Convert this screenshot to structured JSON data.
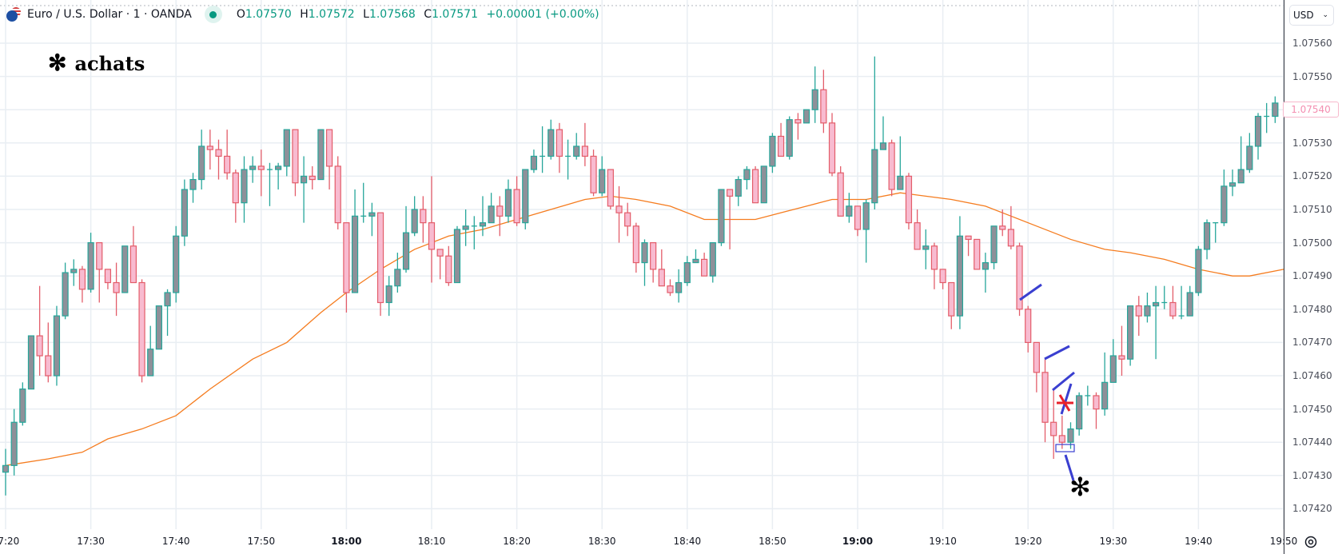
{
  "header": {
    "symbol": "Euro / U.S. Dollar · 1 · OANDA",
    "o_label": "O",
    "o": "1.07570",
    "h_label": "H",
    "h": "1.07572",
    "l_label": "L",
    "l": "1.07568",
    "c_label": "C",
    "c": "1.07571",
    "change": "+0.00001 (+0.00%)",
    "status_color": "#089981"
  },
  "annotations": {
    "top_text": "achats",
    "star": "✻"
  },
  "axis": {
    "currency": "USD",
    "last_price": "1.07540"
  },
  "colors": {
    "up_body": "#8e9099",
    "up_border": "#26a69a",
    "down_body": "#f8bbd0",
    "down_border": "#e35d6a",
    "ma": "#f57c1f",
    "drawing": "#3a3fd0",
    "marker": "#e8202a"
  },
  "chart_data": {
    "type": "candlestick",
    "interval": "1",
    "ylim": [
      1.07415,
      1.07565
    ],
    "grid": true,
    "y_ticks": [
      "1.07560",
      "1.07550",
      "1.07540",
      "1.07530",
      "1.07520",
      "1.07510",
      "1.07500",
      "1.07490",
      "1.07480",
      "1.07470",
      "1.07460",
      "1.07450",
      "1.07440",
      "1.07430",
      "1.07420"
    ],
    "x_ticks": [
      {
        "t": "17:20",
        "bold": false
      },
      {
        "t": "17:30",
        "bold": false
      },
      {
        "t": "17:40",
        "bold": false
      },
      {
        "t": "17:50",
        "bold": false
      },
      {
        "t": "18:00",
        "bold": true
      },
      {
        "t": "18:10",
        "bold": false
      },
      {
        "t": "18:20",
        "bold": false
      },
      {
        "t": "18:30",
        "bold": false
      },
      {
        "t": "18:40",
        "bold": false
      },
      {
        "t": "18:50",
        "bold": false
      },
      {
        "t": "19:00",
        "bold": true
      },
      {
        "t": "19:10",
        "bold": false
      },
      {
        "t": "19:20",
        "bold": false
      },
      {
        "t": "19:30",
        "bold": false
      },
      {
        "t": "19:40",
        "bold": false
      },
      {
        "t": "19:50",
        "bold": false
      }
    ],
    "candles_columns": [
      "time",
      "open",
      "high",
      "low",
      "close"
    ],
    "candles": [
      [
        "17:20",
        1.07431,
        1.07438,
        1.07424,
        1.07433
      ],
      [
        "17:21",
        1.07433,
        1.0745,
        1.0743,
        1.07446
      ],
      [
        "17:22",
        1.07446,
        1.07458,
        1.07445,
        1.07456
      ],
      [
        "17:23",
        1.07456,
        1.07472,
        1.07456,
        1.07472
      ],
      [
        "17:24",
        1.07472,
        1.07487,
        1.0746,
        1.07466
      ],
      [
        "17:25",
        1.07466,
        1.07476,
        1.07458,
        1.0746
      ],
      [
        "17:26",
        1.0746,
        1.07481,
        1.07457,
        1.07478
      ],
      [
        "17:27",
        1.07478,
        1.07494,
        1.07477,
        1.07491
      ],
      [
        "17:28",
        1.07491,
        1.07495,
        1.07487,
        1.07492
      ],
      [
        "17:29",
        1.07492,
        1.07493,
        1.07482,
        1.07486
      ],
      [
        "17:30",
        1.07486,
        1.07503,
        1.07485,
        1.075
      ],
      [
        "17:31",
        1.075,
        1.075,
        1.07482,
        1.07492
      ],
      [
        "17:32",
        1.07492,
        1.07492,
        1.07486,
        1.07488
      ],
      [
        "17:33",
        1.07488,
        1.07494,
        1.07478,
        1.07485
      ],
      [
        "17:34",
        1.07485,
        1.07499,
        1.07485,
        1.07499
      ],
      [
        "17:35",
        1.07499,
        1.07505,
        1.07488,
        1.07488
      ],
      [
        "17:36",
        1.07488,
        1.07489,
        1.07458,
        1.0746
      ],
      [
        "17:37",
        1.0746,
        1.07475,
        1.0746,
        1.07468
      ],
      [
        "17:38",
        1.07468,
        1.07481,
        1.07468,
        1.07481
      ],
      [
        "17:39",
        1.07481,
        1.07486,
        1.07472,
        1.07485
      ],
      [
        "17:40",
        1.07485,
        1.07505,
        1.07482,
        1.07502
      ],
      [
        "17:41",
        1.07502,
        1.07519,
        1.07499,
        1.07516
      ],
      [
        "17:42",
        1.07516,
        1.07521,
        1.07512,
        1.07519
      ],
      [
        "17:43",
        1.07519,
        1.07534,
        1.07516,
        1.07529
      ],
      [
        "17:44",
        1.07529,
        1.07534,
        1.07522,
        1.07528
      ],
      [
        "17:45",
        1.07528,
        1.07531,
        1.07519,
        1.07526
      ],
      [
        "17:46",
        1.07526,
        1.07534,
        1.07519,
        1.07521
      ],
      [
        "17:47",
        1.07521,
        1.07522,
        1.07506,
        1.07512
      ],
      [
        "17:48",
        1.07512,
        1.07526,
        1.07506,
        1.07522
      ],
      [
        "17:49",
        1.07522,
        1.07526,
        1.07518,
        1.07523
      ],
      [
        "17:50",
        1.07523,
        1.07528,
        1.07514,
        1.07522
      ],
      [
        "17:51",
        1.07522,
        1.07524,
        1.07511,
        1.07522
      ],
      [
        "17:52",
        1.07522,
        1.07524,
        1.07516,
        1.07523
      ],
      [
        "17:53",
        1.07523,
        1.07534,
        1.0752,
        1.07534
      ],
      [
        "17:54",
        1.07534,
        1.07534,
        1.07514,
        1.07518
      ],
      [
        "17:55",
        1.07518,
        1.07526,
        1.07506,
        1.0752
      ],
      [
        "17:56",
        1.0752,
        1.07523,
        1.07516,
        1.07519
      ],
      [
        "17:57",
        1.07519,
        1.07534,
        1.07519,
        1.07534
      ],
      [
        "17:58",
        1.07534,
        1.07534,
        1.07516,
        1.07523
      ],
      [
        "17:59",
        1.07523,
        1.07526,
        1.07504,
        1.07506
      ],
      [
        "18:00",
        1.07506,
        1.07506,
        1.07479,
        1.07485
      ],
      [
        "18:01",
        1.07485,
        1.07516,
        1.07485,
        1.07508
      ],
      [
        "18:02",
        1.07508,
        1.07518,
        1.07506,
        1.07508
      ],
      [
        "18:03",
        1.07508,
        1.07512,
        1.07502,
        1.07509
      ],
      [
        "18:04",
        1.07509,
        1.07509,
        1.07478,
        1.07482
      ],
      [
        "18:05",
        1.07482,
        1.0749,
        1.07478,
        1.07487
      ],
      [
        "18:06",
        1.07487,
        1.07497,
        1.07485,
        1.07492
      ],
      [
        "18:07",
        1.07492,
        1.07511,
        1.07491,
        1.07503
      ],
      [
        "18:08",
        1.07503,
        1.07514,
        1.07502,
        1.0751
      ],
      [
        "18:09",
        1.0751,
        1.07514,
        1.075,
        1.07506
      ],
      [
        "18:10",
        1.07506,
        1.0752,
        1.07488,
        1.07498
      ],
      [
        "18:11",
        1.07498,
        1.07498,
        1.07489,
        1.07496
      ],
      [
        "18:12",
        1.07496,
        1.07499,
        1.07487,
        1.07488
      ],
      [
        "18:13",
        1.07488,
        1.07505,
        1.07488,
        1.07504
      ],
      [
        "18:14",
        1.07504,
        1.0751,
        1.07499,
        1.07505
      ],
      [
        "18:15",
        1.07505,
        1.07508,
        1.07498,
        1.07505
      ],
      [
        "18:16",
        1.07505,
        1.07514,
        1.07502,
        1.07506
      ],
      [
        "18:17",
        1.07506,
        1.07515,
        1.07506,
        1.07511
      ],
      [
        "18:18",
        1.07511,
        1.07514,
        1.07502,
        1.07508
      ],
      [
        "18:19",
        1.07508,
        1.07519,
        1.07506,
        1.07516
      ],
      [
        "18:20",
        1.07516,
        1.0752,
        1.07505,
        1.07506
      ],
      [
        "18:21",
        1.07506,
        1.07522,
        1.07504,
        1.07522
      ],
      [
        "18:22",
        1.07522,
        1.07528,
        1.07521,
        1.07526
      ],
      [
        "18:23",
        1.07526,
        1.07535,
        1.07521,
        1.07526
      ],
      [
        "18:24",
        1.07526,
        1.07537,
        1.07525,
        1.07534
      ],
      [
        "18:25",
        1.07534,
        1.07536,
        1.07521,
        1.07526
      ],
      [
        "18:26",
        1.07526,
        1.07531,
        1.07519,
        1.07526
      ],
      [
        "18:27",
        1.07526,
        1.07533,
        1.07525,
        1.07529
      ],
      [
        "18:28",
        1.07529,
        1.07536,
        1.07523,
        1.07526
      ],
      [
        "18:29",
        1.07526,
        1.07528,
        1.07514,
        1.07515
      ],
      [
        "18:30",
        1.07515,
        1.07526,
        1.07514,
        1.07522
      ],
      [
        "18:31",
        1.07522,
        1.07522,
        1.0751,
        1.07511
      ],
      [
        "18:32",
        1.07511,
        1.07517,
        1.075,
        1.07509
      ],
      [
        "18:33",
        1.07509,
        1.07512,
        1.07502,
        1.07505
      ],
      [
        "18:34",
        1.07505,
        1.07506,
        1.07491,
        1.07494
      ],
      [
        "18:35",
        1.07494,
        1.07501,
        1.07487,
        1.075
      ],
      [
        "18:36",
        1.075,
        1.075,
        1.07488,
        1.07492
      ],
      [
        "18:37",
        1.07492,
        1.07498,
        1.07487,
        1.07487
      ],
      [
        "18:38",
        1.07487,
        1.07489,
        1.07484,
        1.07485
      ],
      [
        "18:39",
        1.07485,
        1.07492,
        1.07482,
        1.07488
      ],
      [
        "18:40",
        1.07488,
        1.07496,
        1.07487,
        1.07494
      ],
      [
        "18:41",
        1.07494,
        1.07498,
        1.07494,
        1.07495
      ],
      [
        "18:42",
        1.07495,
        1.07497,
        1.0749,
        1.0749
      ],
      [
        "18:43",
        1.0749,
        1.075,
        1.07488,
        1.075
      ],
      [
        "18:44",
        1.075,
        1.07516,
        1.07499,
        1.07516
      ],
      [
        "18:45",
        1.07516,
        1.07516,
        1.07498,
        1.07514
      ],
      [
        "18:46",
        1.07514,
        1.0752,
        1.07511,
        1.07519
      ],
      [
        "18:47",
        1.07519,
        1.07523,
        1.07516,
        1.07522
      ],
      [
        "18:48",
        1.07522,
        1.07523,
        1.07512,
        1.07512
      ],
      [
        "18:49",
        1.07512,
        1.07523,
        1.07512,
        1.07523
      ],
      [
        "18:50",
        1.07523,
        1.07533,
        1.07521,
        1.07532
      ],
      [
        "18:51",
        1.07532,
        1.07536,
        1.07526,
        1.07526
      ],
      [
        "18:52",
        1.07526,
        1.07538,
        1.07525,
        1.07537
      ],
      [
        "18:53",
        1.07537,
        1.07539,
        1.07531,
        1.07536
      ],
      [
        "18:54",
        1.07536,
        1.0754,
        1.07536,
        1.0754
      ],
      [
        "18:55",
        1.0754,
        1.07553,
        1.07536,
        1.07546
      ],
      [
        "18:56",
        1.07546,
        1.07552,
        1.07533,
        1.07536
      ],
      [
        "18:57",
        1.07536,
        1.07539,
        1.0752,
        1.07521
      ],
      [
        "18:58",
        1.07521,
        1.07523,
        1.07508,
        1.07508
      ],
      [
        "18:59",
        1.07508,
        1.07515,
        1.07506,
        1.07511
      ],
      [
        "19:00",
        1.07511,
        1.07511,
        1.07502,
        1.07504
      ],
      [
        "19:01",
        1.07504,
        1.07513,
        1.07494,
        1.07512
      ],
      [
        "19:02",
        1.07512,
        1.07556,
        1.0751,
        1.07528
      ],
      [
        "19:03",
        1.07528,
        1.07538,
        1.07528,
        1.0753
      ],
      [
        "19:04",
        1.0753,
        1.07531,
        1.07514,
        1.07516
      ],
      [
        "19:05",
        1.07516,
        1.07532,
        1.07516,
        1.0752
      ],
      [
        "19:06",
        1.0752,
        1.07521,
        1.07504,
        1.07506
      ],
      [
        "19:07",
        1.07506,
        1.0751,
        1.07498,
        1.07498
      ],
      [
        "19:08",
        1.07498,
        1.07504,
        1.07492,
        1.07499
      ],
      [
        "19:09",
        1.07499,
        1.075,
        1.07486,
        1.07492
      ],
      [
        "19:10",
        1.07492,
        1.07492,
        1.07486,
        1.07488
      ],
      [
        "19:11",
        1.07488,
        1.07488,
        1.07474,
        1.07478
      ],
      [
        "19:12",
        1.07478,
        1.07508,
        1.07474,
        1.07502
      ],
      [
        "19:13",
        1.07502,
        1.07502,
        1.07496,
        1.07501
      ],
      [
        "19:14",
        1.07501,
        1.07501,
        1.07492,
        1.07492
      ],
      [
        "19:15",
        1.07492,
        1.07497,
        1.07485,
        1.07494
      ],
      [
        "19:16",
        1.07494,
        1.07505,
        1.07492,
        1.07505
      ],
      [
        "19:17",
        1.07505,
        1.0751,
        1.07502,
        1.07504
      ],
      [
        "19:18",
        1.07504,
        1.07511,
        1.07498,
        1.07499
      ],
      [
        "19:19",
        1.07499,
        1.075,
        1.07478,
        1.0748
      ],
      [
        "19:20",
        1.0748,
        1.07481,
        1.07467,
        1.0747
      ],
      [
        "19:21",
        1.0747,
        1.0747,
        1.07455,
        1.07461
      ],
      [
        "19:22",
        1.07461,
        1.07465,
        1.0744,
        1.07446
      ],
      [
        "19:23",
        1.07446,
        1.07456,
        1.07435,
        1.07442
      ],
      [
        "19:24",
        1.07442,
        1.07448,
        1.07438,
        1.0744
      ],
      [
        "19:25",
        1.0744,
        1.07446,
        1.07438,
        1.07444
      ],
      [
        "19:26",
        1.07444,
        1.07455,
        1.07442,
        1.07454
      ],
      [
        "19:27",
        1.07454,
        1.07457,
        1.07451,
        1.07454
      ],
      [
        "19:28",
        1.07454,
        1.07455,
        1.07444,
        1.0745
      ],
      [
        "19:29",
        1.0745,
        1.07467,
        1.07448,
        1.07458
      ],
      [
        "19:30",
        1.07458,
        1.07471,
        1.07458,
        1.07466
      ],
      [
        "19:31",
        1.07466,
        1.07475,
        1.0746,
        1.07465
      ],
      [
        "19:32",
        1.07465,
        1.07481,
        1.07463,
        1.07481
      ],
      [
        "19:33",
        1.07481,
        1.07484,
        1.07472,
        1.07478
      ],
      [
        "19:34",
        1.07478,
        1.07485,
        1.07476,
        1.07481
      ],
      [
        "19:35",
        1.07481,
        1.07487,
        1.07465,
        1.07482
      ],
      [
        "19:36",
        1.07482,
        1.07487,
        1.0748,
        1.07482
      ],
      [
        "19:37",
        1.07482,
        1.07487,
        1.07477,
        1.07478
      ],
      [
        "19:38",
        1.07478,
        1.07487,
        1.07477,
        1.07478
      ],
      [
        "19:39",
        1.07478,
        1.07487,
        1.07478,
        1.07485
      ],
      [
        "19:40",
        1.07485,
        1.07499,
        1.07484,
        1.07498
      ],
      [
        "19:41",
        1.07498,
        1.07507,
        1.07495,
        1.07506
      ],
      [
        "19:42",
        1.07506,
        1.07506,
        1.075,
        1.07506
      ],
      [
        "19:43",
        1.07506,
        1.07522,
        1.07505,
        1.07517
      ],
      [
        "19:44",
        1.07517,
        1.07522,
        1.07514,
        1.07518
      ],
      [
        "19:45",
        1.07518,
        1.07532,
        1.07518,
        1.07522
      ],
      [
        "19:46",
        1.07522,
        1.07533,
        1.07521,
        1.07529
      ],
      [
        "19:47",
        1.07529,
        1.07539,
        1.07525,
        1.07538
      ],
      [
        "19:48",
        1.07538,
        1.07542,
        1.07533,
        1.07538
      ],
      [
        "19:49",
        1.07538,
        1.07544,
        1.07536,
        1.07542
      ]
    ],
    "moving_average": [
      [
        "17:20",
        1.07433
      ],
      [
        "17:25",
        1.07435
      ],
      [
        "17:29",
        1.07437
      ],
      [
        "17:32",
        1.07441
      ],
      [
        "17:36",
        1.07444
      ],
      [
        "17:40",
        1.07448
      ],
      [
        "17:44",
        1.07456
      ],
      [
        "17:49",
        1.07465
      ],
      [
        "17:53",
        1.0747
      ],
      [
        "17:57",
        1.07479
      ],
      [
        "18:00",
        1.07485
      ],
      [
        "18:04",
        1.07492
      ],
      [
        "18:08",
        1.07498
      ],
      [
        "18:12",
        1.07502
      ],
      [
        "18:16",
        1.07504
      ],
      [
        "18:20",
        1.07507
      ],
      [
        "18:24",
        1.0751
      ],
      [
        "18:28",
        1.07513
      ],
      [
        "18:31",
        1.07514
      ],
      [
        "18:34",
        1.07513
      ],
      [
        "18:38",
        1.07511
      ],
      [
        "18:42",
        1.07507
      ],
      [
        "18:45",
        1.07507
      ],
      [
        "18:48",
        1.07507
      ],
      [
        "18:51",
        1.07509
      ],
      [
        "18:54",
        1.07511
      ],
      [
        "18:57",
        1.07513
      ],
      [
        "19:01",
        1.07513
      ],
      [
        "19:05",
        1.07515
      ],
      [
        "19:08",
        1.07514
      ],
      [
        "19:11",
        1.07513
      ],
      [
        "19:15",
        1.07511
      ],
      [
        "19:18",
        1.07508
      ],
      [
        "19:21",
        1.07505
      ],
      [
        "19:25",
        1.07501
      ],
      [
        "19:29",
        1.07498
      ],
      [
        "19:32",
        1.07497
      ],
      [
        "19:36",
        1.07495
      ],
      [
        "19:40",
        1.07492
      ],
      [
        "19:44",
        1.0749
      ],
      [
        "19:46",
        1.0749
      ],
      [
        "19:50",
        1.07492
      ]
    ]
  }
}
